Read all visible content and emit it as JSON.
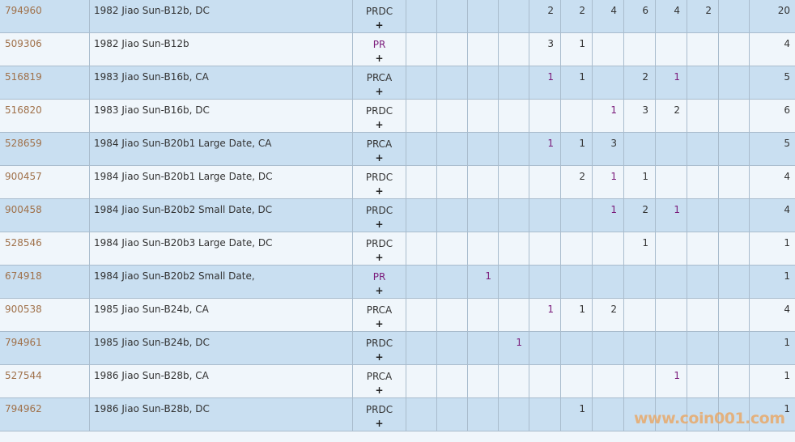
{
  "colors": {
    "row_odd": "#c9dff1",
    "row_even": "#f0f6fb",
    "border": "#a9bccd",
    "id_link": "#a0714a",
    "highlight": "#7a1a7a",
    "watermark": "#e8a96b"
  },
  "watermark": "www.coin001.com",
  "rows": [
    {
      "id": "794960",
      "name": "1982 Jiao Sun-B12b, DC",
      "grade": "PRDC",
      "grade_hl": false,
      "plus": "+",
      "cells": [
        null,
        null,
        null,
        null,
        {
          "v": "2"
        },
        {
          "v": "2"
        },
        {
          "v": "4"
        },
        {
          "v": "6"
        },
        {
          "v": "4"
        },
        {
          "v": "2"
        },
        null
      ],
      "total": "20"
    },
    {
      "id": "509306",
      "name": "1982 Jiao Sun-B12b",
      "grade": "PR",
      "grade_hl": true,
      "plus": "+",
      "cells": [
        null,
        null,
        null,
        null,
        {
          "v": "3"
        },
        {
          "v": "1"
        },
        null,
        null,
        null,
        null,
        null
      ],
      "total": "4"
    },
    {
      "id": "516819",
      "name": "1983 Jiao Sun-B16b, CA",
      "grade": "PRCA",
      "grade_hl": false,
      "plus": "+",
      "cells": [
        null,
        null,
        null,
        null,
        {
          "v": "1",
          "hl": true
        },
        {
          "v": "1"
        },
        null,
        {
          "v": "2"
        },
        {
          "v": "1",
          "hl": true
        },
        null,
        null
      ],
      "total": "5"
    },
    {
      "id": "516820",
      "name": "1983 Jiao Sun-B16b, DC",
      "grade": "PRDC",
      "grade_hl": false,
      "plus": "+",
      "cells": [
        null,
        null,
        null,
        null,
        null,
        null,
        {
          "v": "1",
          "hl": true
        },
        {
          "v": "3"
        },
        {
          "v": "2"
        },
        null,
        null
      ],
      "total": "6"
    },
    {
      "id": "528659",
      "name": "1984 Jiao Sun-B20b1 Large Date, CA",
      "grade": "PRCA",
      "grade_hl": false,
      "plus": "+",
      "cells": [
        null,
        null,
        null,
        null,
        {
          "v": "1",
          "hl": true
        },
        {
          "v": "1"
        },
        {
          "v": "3"
        },
        null,
        null,
        null,
        null
      ],
      "total": "5"
    },
    {
      "id": "900457",
      "name": "1984 Jiao Sun-B20b1 Large Date, DC",
      "grade": "PRDC",
      "grade_hl": false,
      "plus": "+",
      "cells": [
        null,
        null,
        null,
        null,
        null,
        {
          "v": "2"
        },
        {
          "v": "1",
          "hl": true
        },
        {
          "v": "1"
        },
        null,
        null,
        null
      ],
      "total": "4"
    },
    {
      "id": "900458",
      "name": "1984 Jiao Sun-B20b2 Small Date, DC",
      "grade": "PRDC",
      "grade_hl": false,
      "plus": "+",
      "cells": [
        null,
        null,
        null,
        null,
        null,
        null,
        {
          "v": "1",
          "hl": true
        },
        {
          "v": "2"
        },
        {
          "v": "1",
          "hl": true
        },
        null,
        null
      ],
      "total": "4"
    },
    {
      "id": "528546",
      "name": "1984 Jiao Sun-B20b3 Large Date, DC",
      "grade": "PRDC",
      "grade_hl": false,
      "plus": "+",
      "cells": [
        null,
        null,
        null,
        null,
        null,
        null,
        null,
        {
          "v": "1"
        },
        null,
        null,
        null
      ],
      "total": "1"
    },
    {
      "id": "674918",
      "name": "1984 Jiao Sun-B20b2 Small Date,",
      "grade": "PR",
      "grade_hl": true,
      "plus": "+",
      "cells": [
        null,
        null,
        {
          "v": "1",
          "hl": true
        },
        null,
        null,
        null,
        null,
        null,
        null,
        null,
        null
      ],
      "total": "1"
    },
    {
      "id": "900538",
      "name": "1985 Jiao Sun-B24b, CA",
      "grade": "PRCA",
      "grade_hl": false,
      "plus": "+",
      "cells": [
        null,
        null,
        null,
        null,
        {
          "v": "1",
          "hl": true
        },
        {
          "v": "1"
        },
        {
          "v": "2"
        },
        null,
        null,
        null,
        null
      ],
      "total": "4"
    },
    {
      "id": "794961",
      "name": "1985 Jiao Sun-B24b, DC",
      "grade": "PRDC",
      "grade_hl": false,
      "plus": "+",
      "cells": [
        null,
        null,
        null,
        {
          "v": "1",
          "hl": true
        },
        null,
        null,
        null,
        null,
        null,
        null,
        null
      ],
      "total": "1"
    },
    {
      "id": "527544",
      "name": "1986 Jiao Sun-B28b, CA",
      "grade": "PRCA",
      "grade_hl": false,
      "plus": "+",
      "cells": [
        null,
        null,
        null,
        null,
        null,
        null,
        null,
        null,
        {
          "v": "1",
          "hl": true
        },
        null,
        null
      ],
      "total": "1"
    },
    {
      "id": "794962",
      "name": "1986 Jiao Sun-B28b, DC",
      "grade": "PRDC",
      "grade_hl": false,
      "plus": "+",
      "cells": [
        null,
        null,
        null,
        null,
        null,
        {
          "v": "1"
        },
        null,
        null,
        null,
        null,
        null
      ],
      "total": "1"
    }
  ]
}
